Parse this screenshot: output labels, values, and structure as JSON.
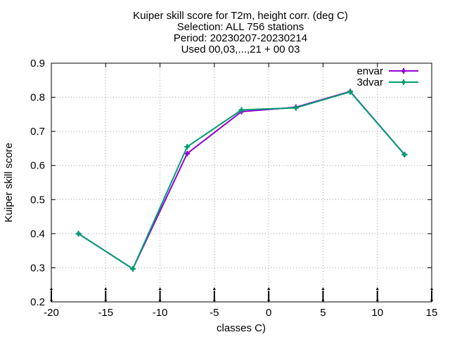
{
  "chart_data": {
    "type": "line",
    "title_lines": [
      "Kuiper skill score  for T2m, height corr. (deg C)",
      "Selection: ALL    756 stations",
      "Period: 20230207-20230214",
      "Used 00,03,...,21 + 00 03"
    ],
    "xlabel": "classes C)",
    "ylabel": "Kuiper skill score",
    "xlim": [
      -20,
      15
    ],
    "ylim": [
      0.2,
      0.9
    ],
    "xticks": [
      -20,
      -15,
      -10,
      -5,
      0,
      5,
      10,
      15
    ],
    "yticks": [
      0.2,
      0.3,
      0.4,
      0.5,
      0.6,
      0.7,
      0.8,
      0.9
    ],
    "xtick_labels": [
      "-20",
      "-15",
      "-10",
      "-5",
      "0",
      "5",
      "10",
      "15"
    ],
    "ytick_labels": [
      "0.2",
      "0.3",
      "0.4",
      "0.5",
      "0.6",
      "0.7",
      "0.8",
      "0.9"
    ],
    "grid": true,
    "legend_position": "top-right",
    "series": [
      {
        "name": "envar",
        "color": "#9400d3",
        "x": [
          -17.5,
          -12.5,
          -7.5,
          -2.5,
          2.5,
          7.5,
          12.5
        ],
        "y": [
          0.4,
          0.297,
          0.635,
          0.758,
          0.771,
          0.817,
          0.632
        ]
      },
      {
        "name": "3dvar",
        "color": "#009e73",
        "x": [
          -17.5,
          -12.5,
          -7.5,
          -2.5,
          2.5,
          7.5,
          12.5
        ],
        "y": [
          0.4,
          0.297,
          0.655,
          0.763,
          0.769,
          0.816,
          0.632
        ]
      }
    ],
    "bottom_markers_x": [
      -20,
      -15,
      -10,
      -5,
      0,
      5,
      10,
      15
    ]
  }
}
